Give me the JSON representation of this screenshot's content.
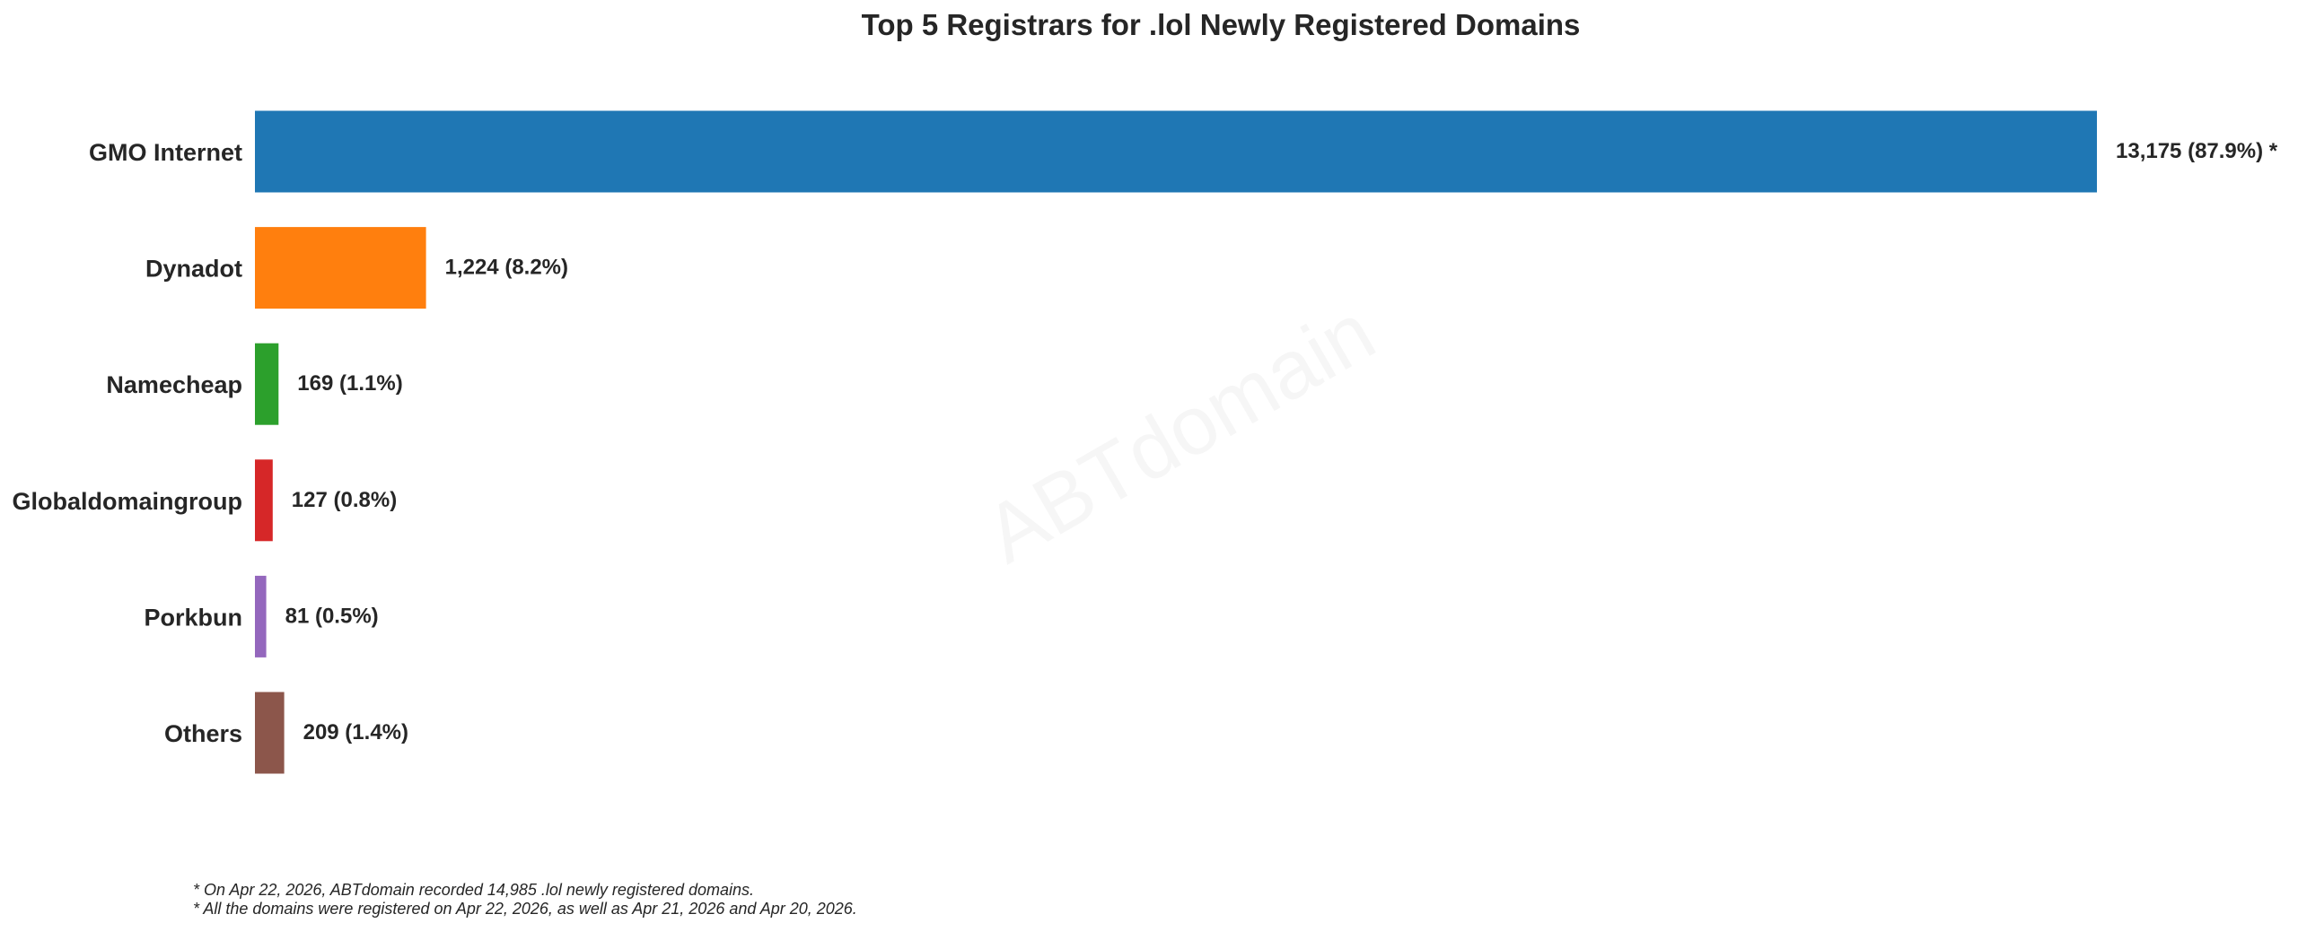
{
  "chart_data": {
    "type": "bar",
    "orientation": "horizontal",
    "title": "Top 5 Registrars for .lol Newly Registered Domains",
    "xlabel": "",
    "ylabel": "",
    "grid": false,
    "legend": "none",
    "categories": [
      "GMO Internet",
      "Dynadot",
      "Namecheap",
      "Globaldomaingroup",
      "Porkbun",
      "Others"
    ],
    "values": [
      13175,
      1224,
      169,
      127,
      81,
      209
    ],
    "value_labels": [
      "13,175 (87.9%) *",
      "1,224 (8.2%)",
      "169 (1.1%)",
      "127 (0.8%)",
      "81 (0.5%)",
      "209 (1.4%)"
    ],
    "colors": [
      "#1f77b4",
      "#ff7f0e",
      "#2ca02c",
      "#d62728",
      "#9467bd",
      "#8c564b"
    ],
    "xlim": [
      0,
      13175
    ],
    "watermark": "ABTdomain",
    "footnotes": [
      "* On Apr 22, 2026, ABTdomain recorded 14,985 .lol newly registered domains.",
      "* All the domains were registered on Apr 22, 2026, as well as Apr 21, 2026 and Apr 20, 2026."
    ]
  }
}
